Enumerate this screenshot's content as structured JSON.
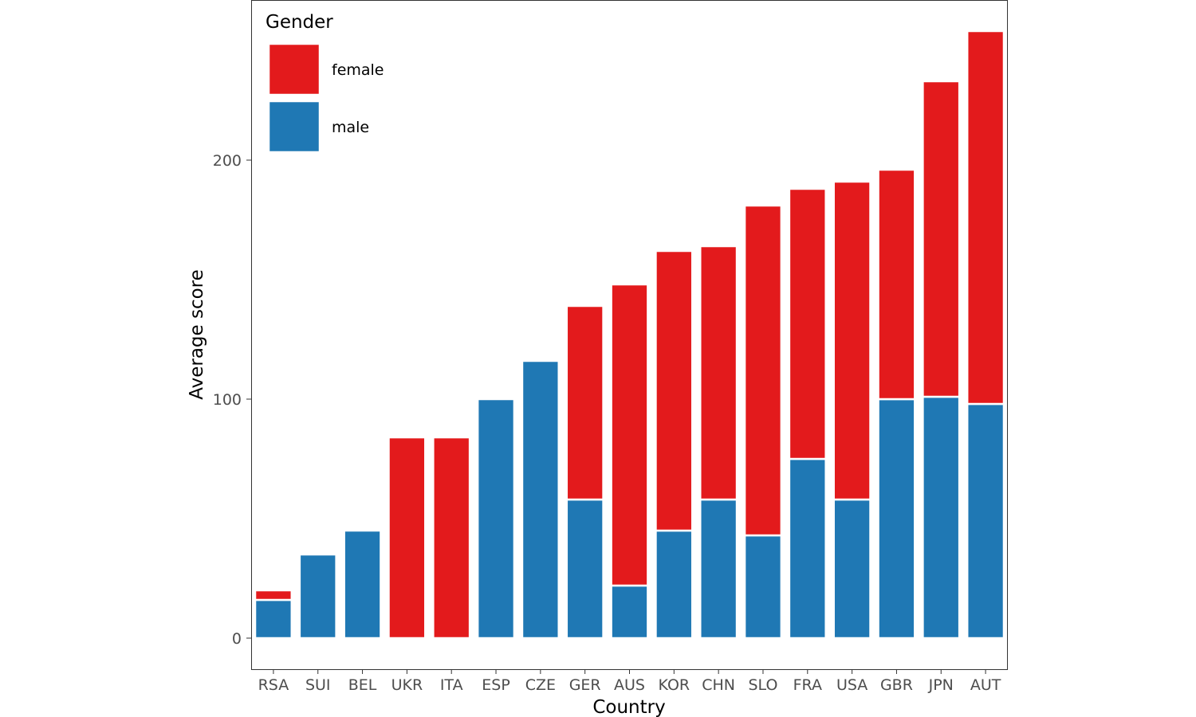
{
  "chart_data": {
    "type": "bar",
    "stacked": true,
    "title": "",
    "xlabel": "Country",
    "ylabel": "Average score",
    "ylim": [
      -13,
      267
    ],
    "yticks": [
      0,
      100,
      200
    ],
    "grid": false,
    "legend": {
      "title": "Gender",
      "placement": "top-left",
      "entries": [
        "female",
        "male"
      ]
    },
    "categories": [
      "RSA",
      "SUI",
      "BEL",
      "UKR",
      "ITA",
      "ESP",
      "CZE",
      "GER",
      "AUS",
      "KOR",
      "CHN",
      "SLO",
      "FRA",
      "USA",
      "GBR",
      "JPN",
      "AUT"
    ],
    "series": [
      {
        "name": "male",
        "color": "#1F78B4",
        "values": [
          16,
          35,
          45,
          0,
          0,
          100,
          116,
          58,
          22,
          45,
          58,
          43,
          75,
          58,
          100,
          101,
          98
        ]
      },
      {
        "name": "female",
        "color": "#E31A1C",
        "values": [
          4,
          0,
          0,
          84,
          84,
          0,
          0,
          81,
          126,
          117,
          106,
          138,
          113,
          133,
          96,
          132,
          156
        ]
      }
    ]
  }
}
